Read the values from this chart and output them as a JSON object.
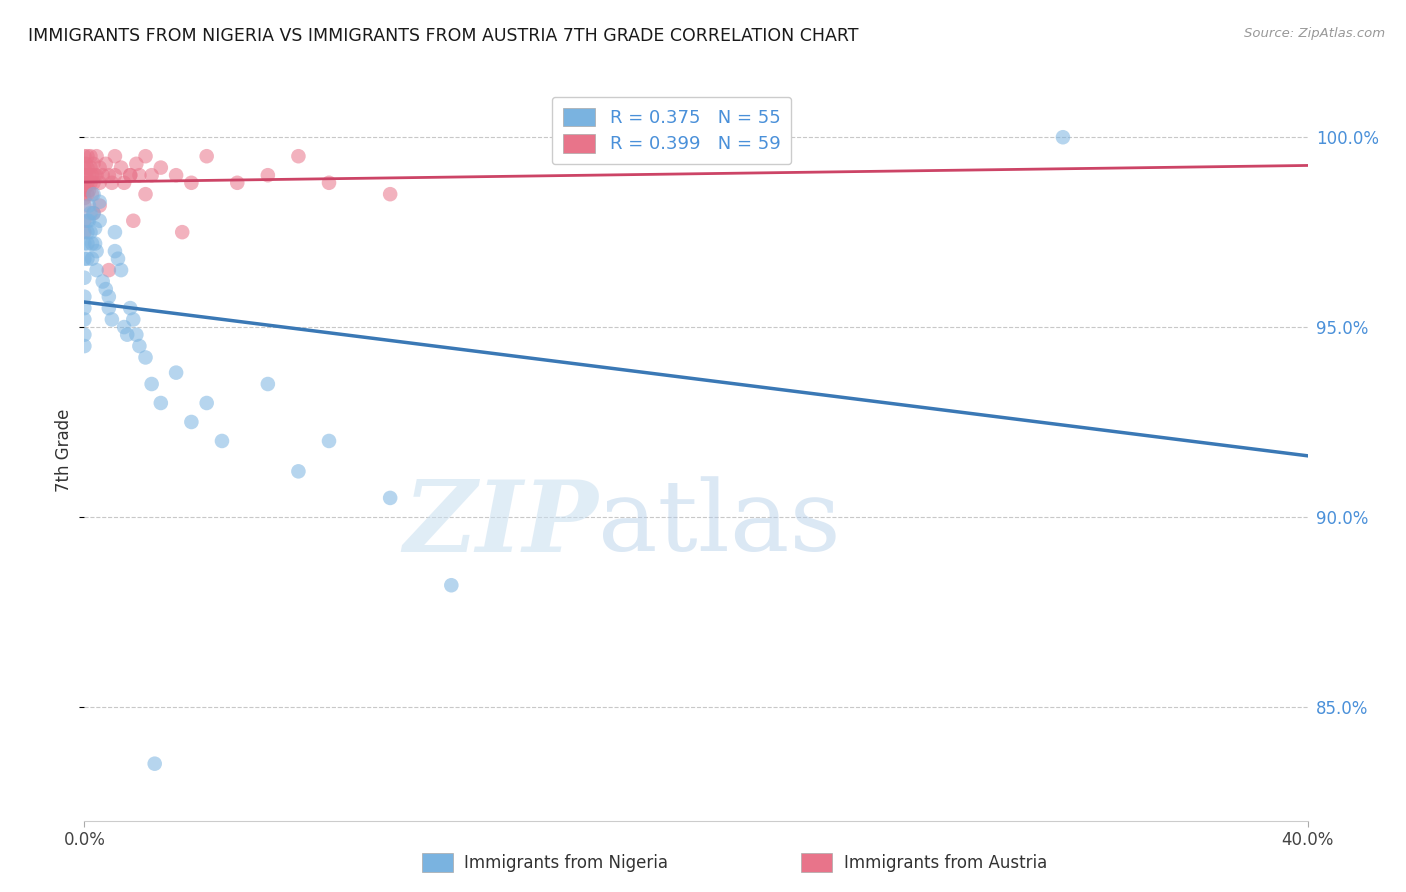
{
  "title": "IMMIGRANTS FROM NIGERIA VS IMMIGRANTS FROM AUSTRIA 7TH GRADE CORRELATION CHART",
  "source": "Source: ZipAtlas.com",
  "ylabel": "7th Grade",
  "legend_r_nigeria": "R = 0.375",
  "legend_n_nigeria": "N = 55",
  "legend_r_austria": "R = 0.399",
  "legend_n_austria": "N = 59",
  "nigeria_color": "#7ab3e0",
  "austria_color": "#e8748a",
  "nigeria_line_color": "#3a78b5",
  "austria_line_color": "#cc4466",
  "xmin": 0.0,
  "xmax": 40.0,
  "ymin": 82.0,
  "ymax": 101.5,
  "yticks": [
    85.0,
    90.0,
    95.0,
    100.0
  ],
  "nigeria_points": [
    [
      0.0,
      97.2
    ],
    [
      0.0,
      96.8
    ],
    [
      0.0,
      96.3
    ],
    [
      0.0,
      95.8
    ],
    [
      0.0,
      95.5
    ],
    [
      0.0,
      95.2
    ],
    [
      0.0,
      94.8
    ],
    [
      0.0,
      94.5
    ],
    [
      0.1,
      97.8
    ],
    [
      0.1,
      97.5
    ],
    [
      0.1,
      97.2
    ],
    [
      0.1,
      96.8
    ],
    [
      0.15,
      98.2
    ],
    [
      0.15,
      97.8
    ],
    [
      0.2,
      98.0
    ],
    [
      0.2,
      97.5
    ],
    [
      0.25,
      97.2
    ],
    [
      0.25,
      96.8
    ],
    [
      0.3,
      98.5
    ],
    [
      0.3,
      98.0
    ],
    [
      0.35,
      97.6
    ],
    [
      0.35,
      97.2
    ],
    [
      0.4,
      97.0
    ],
    [
      0.4,
      96.5
    ],
    [
      0.5,
      98.3
    ],
    [
      0.5,
      97.8
    ],
    [
      0.6,
      96.2
    ],
    [
      0.7,
      96.0
    ],
    [
      0.8,
      95.8
    ],
    [
      0.8,
      95.5
    ],
    [
      0.9,
      95.2
    ],
    [
      1.0,
      97.5
    ],
    [
      1.0,
      97.0
    ],
    [
      1.1,
      96.8
    ],
    [
      1.2,
      96.5
    ],
    [
      1.3,
      95.0
    ],
    [
      1.4,
      94.8
    ],
    [
      1.5,
      95.5
    ],
    [
      1.6,
      95.2
    ],
    [
      1.7,
      94.8
    ],
    [
      1.8,
      94.5
    ],
    [
      2.0,
      94.2
    ],
    [
      2.2,
      93.5
    ],
    [
      2.5,
      93.0
    ],
    [
      3.0,
      93.8
    ],
    [
      3.5,
      92.5
    ],
    [
      4.0,
      93.0
    ],
    [
      4.5,
      92.0
    ],
    [
      6.0,
      93.5
    ],
    [
      7.0,
      91.2
    ],
    [
      8.0,
      92.0
    ],
    [
      10.0,
      90.5
    ],
    [
      12.0,
      88.2
    ],
    [
      32.0,
      100.0
    ],
    [
      2.3,
      83.5
    ]
  ],
  "austria_points": [
    [
      0.0,
      99.5
    ],
    [
      0.0,
      99.2
    ],
    [
      0.0,
      99.0
    ],
    [
      0.0,
      98.8
    ],
    [
      0.0,
      98.6
    ],
    [
      0.0,
      98.4
    ],
    [
      0.0,
      98.2
    ],
    [
      0.0,
      97.8
    ],
    [
      0.0,
      97.5
    ],
    [
      0.05,
      99.3
    ],
    [
      0.05,
      99.0
    ],
    [
      0.05,
      98.7
    ],
    [
      0.1,
      99.5
    ],
    [
      0.1,
      99.2
    ],
    [
      0.1,
      98.8
    ],
    [
      0.1,
      98.5
    ],
    [
      0.15,
      99.0
    ],
    [
      0.15,
      98.6
    ],
    [
      0.2,
      99.5
    ],
    [
      0.2,
      99.2
    ],
    [
      0.2,
      98.8
    ],
    [
      0.25,
      99.0
    ],
    [
      0.25,
      98.5
    ],
    [
      0.3,
      99.3
    ],
    [
      0.3,
      98.8
    ],
    [
      0.35,
      99.0
    ],
    [
      0.4,
      99.5
    ],
    [
      0.4,
      99.0
    ],
    [
      0.5,
      99.2
    ],
    [
      0.5,
      98.8
    ],
    [
      0.6,
      99.0
    ],
    [
      0.7,
      99.3
    ],
    [
      0.8,
      99.0
    ],
    [
      0.9,
      98.8
    ],
    [
      1.0,
      99.5
    ],
    [
      1.0,
      99.0
    ],
    [
      1.2,
      99.2
    ],
    [
      1.3,
      98.8
    ],
    [
      1.5,
      99.0
    ],
    [
      1.7,
      99.3
    ],
    [
      1.8,
      99.0
    ],
    [
      2.0,
      99.5
    ],
    [
      2.2,
      99.0
    ],
    [
      2.5,
      99.2
    ],
    [
      3.0,
      99.0
    ],
    [
      3.5,
      98.8
    ],
    [
      4.0,
      99.5
    ],
    [
      5.0,
      98.8
    ],
    [
      6.0,
      99.0
    ],
    [
      7.0,
      99.5
    ],
    [
      8.0,
      98.8
    ],
    [
      10.0,
      98.5
    ],
    [
      1.6,
      97.8
    ],
    [
      3.2,
      97.5
    ],
    [
      0.8,
      96.5
    ],
    [
      1.5,
      99.0
    ],
    [
      2.0,
      98.5
    ],
    [
      0.5,
      98.2
    ],
    [
      0.3,
      98.0
    ]
  ]
}
